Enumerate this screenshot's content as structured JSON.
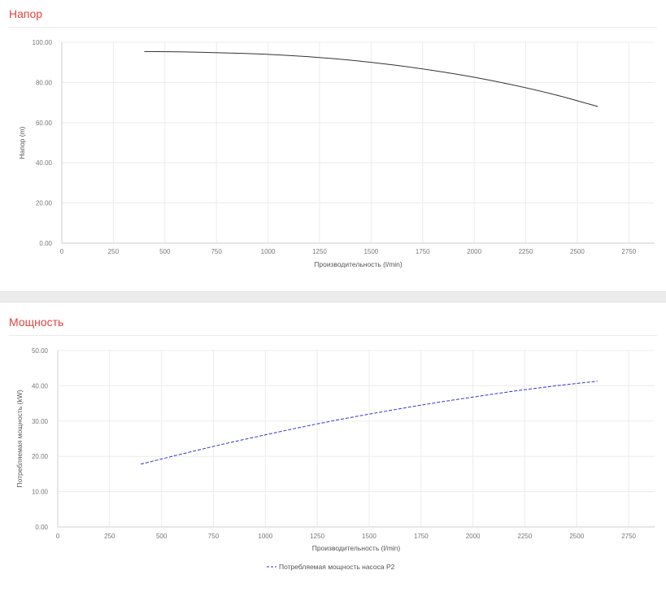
{
  "chart_data": [
    {
      "type": "line",
      "title": "Напор",
      "xlabel": "Производительность (l/min)",
      "ylabel": "Напор (m)",
      "xlim": [
        0,
        2875
      ],
      "ylim": [
        0,
        100
      ],
      "x_ticks": [
        "0",
        "250",
        "500",
        "750",
        "1000",
        "1250",
        "1500",
        "1750",
        "2000",
        "2250",
        "2500",
        "2750"
      ],
      "y_ticks": [
        "0.00",
        "20.00",
        "40.00",
        "60.00",
        "80.00",
        "100.00"
      ],
      "grid": true,
      "series": [
        {
          "color": "#333333",
          "dash": "solid",
          "x": [
            400,
            600,
            800,
            1000,
            1200,
            1400,
            1600,
            1800,
            2000,
            2200,
            2400,
            2600
          ],
          "y": [
            95.4,
            95.2,
            94.7,
            94.0,
            92.8,
            91.1,
            88.8,
            86.0,
            82.6,
            78.5,
            73.7,
            68.0
          ]
        }
      ]
    },
    {
      "type": "line",
      "title": "Мощность",
      "xlabel": "Производительность (l/min)",
      "ylabel": "Потребляемая мощность (kW)",
      "xlim": [
        0,
        2875
      ],
      "ylim": [
        0,
        50
      ],
      "x_ticks": [
        "0",
        "250",
        "500",
        "750",
        "1000",
        "1250",
        "1500",
        "1750",
        "2000",
        "2250",
        "2500",
        "2750"
      ],
      "y_ticks": [
        "0.00",
        "10.00",
        "20.00",
        "30.00",
        "40.00",
        "50.00"
      ],
      "grid": true,
      "legend_position": "bottom-center",
      "series": [
        {
          "name": "Потребляемая мощность насоса P2",
          "color": "#3333cc",
          "dash": "dashed",
          "x": [
            400,
            600,
            800,
            1000,
            1200,
            1400,
            1600,
            1800,
            2000,
            2200,
            2400,
            2600
          ],
          "y": [
            17.8,
            20.7,
            23.5,
            26.1,
            28.6,
            30.9,
            33.0,
            35.0,
            36.8,
            38.5,
            40.0,
            41.3
          ]
        }
      ]
    }
  ]
}
